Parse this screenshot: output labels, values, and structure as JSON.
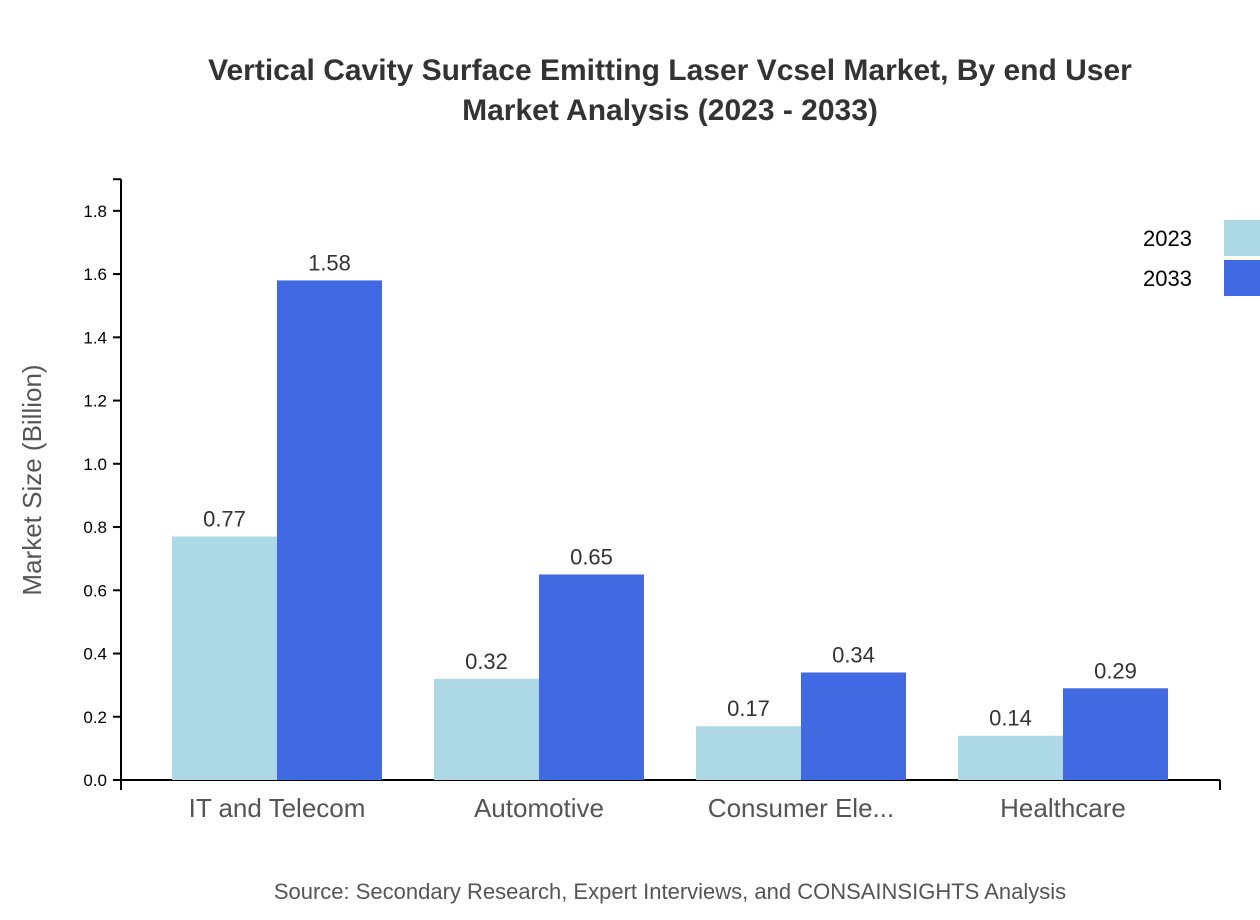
{
  "chart_data": {
    "type": "bar",
    "title_lines": [
      "Vertical Cavity Surface Emitting Laser Vcsel Market, By end User",
      "Market Analysis (2023 - 2033)"
    ],
    "ylabel": "Market Size (Billion)",
    "xlabel": "",
    "categories": [
      "IT and Telecom",
      "Automotive",
      "Consumer Ele...",
      "Healthcare"
    ],
    "series": [
      {
        "name": "2023",
        "color": "#add8e6",
        "values": [
          0.77,
          0.32,
          0.17,
          0.14
        ]
      },
      {
        "name": "2033",
        "color": "#4169e1",
        "values": [
          1.58,
          0.65,
          0.34,
          0.29
        ]
      }
    ],
    "ylim": [
      0,
      1.9
    ],
    "yticks": [
      "0.0",
      "0.2",
      "0.4",
      "0.6",
      "0.8",
      "1.0",
      "1.2",
      "1.4",
      "1.6",
      "1.8"
    ],
    "grid": false,
    "legend_position": "top-right",
    "source": "Source: Secondary Research, Expert Interviews, and CONSAINSIGHTS Analysis"
  }
}
